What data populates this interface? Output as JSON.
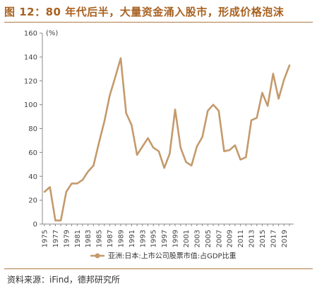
{
  "header": {
    "title": "图 12：80 年代后半，大量资金涌入股市，形成价格泡沫"
  },
  "footer": {
    "source": "资料来源：iFind，德邦研究所"
  },
  "colors": {
    "series": "#c49a6c",
    "accent": "#a8611f",
    "axis": "#888888"
  },
  "chart_data": {
    "type": "line",
    "title": "",
    "xlabel": "",
    "ylabel": "(%)",
    "ylim": [
      0,
      160
    ],
    "yticks": [
      0,
      20,
      40,
      60,
      80,
      100,
      120,
      140,
      160
    ],
    "xtick_labels": [
      "1975",
      "1977",
      "1979",
      "1981",
      "1983",
      "1985",
      "1987",
      "1989",
      "1991",
      "1993",
      "1995",
      "1997",
      "1999",
      "2001",
      "2003",
      "2005",
      "2007",
      "2009",
      "2011",
      "2013",
      "2015",
      "2017",
      "2019"
    ],
    "grid": false,
    "legend": "bottom",
    "x": [
      1975,
      1976,
      1977,
      1978,
      1979,
      1980,
      1981,
      1982,
      1983,
      1984,
      1985,
      1986,
      1987,
      1988,
      1989,
      1990,
      1991,
      1992,
      1993,
      1994,
      1995,
      1996,
      1997,
      1998,
      1999,
      2000,
      2001,
      2002,
      2003,
      2004,
      2005,
      2006,
      2007,
      2008,
      2009,
      2010,
      2011,
      2012,
      2013,
      2014,
      2015,
      2016,
      2017,
      2018,
      2019,
      2020
    ],
    "series": [
      {
        "name": "亚洲:日本:上市公司股票市值:占GDP比重",
        "values": [
          27,
          31,
          3,
          3,
          27,
          34,
          34,
          37,
          44,
          49,
          68,
          86,
          108,
          123,
          139,
          93,
          83,
          58,
          65,
          72,
          64,
          61,
          47,
          59,
          96,
          64,
          52,
          49,
          65,
          73,
          95,
          100,
          95,
          61,
          62,
          66,
          54,
          56,
          87,
          89,
          110,
          99,
          126,
          105,
          121,
          133
        ]
      }
    ]
  }
}
